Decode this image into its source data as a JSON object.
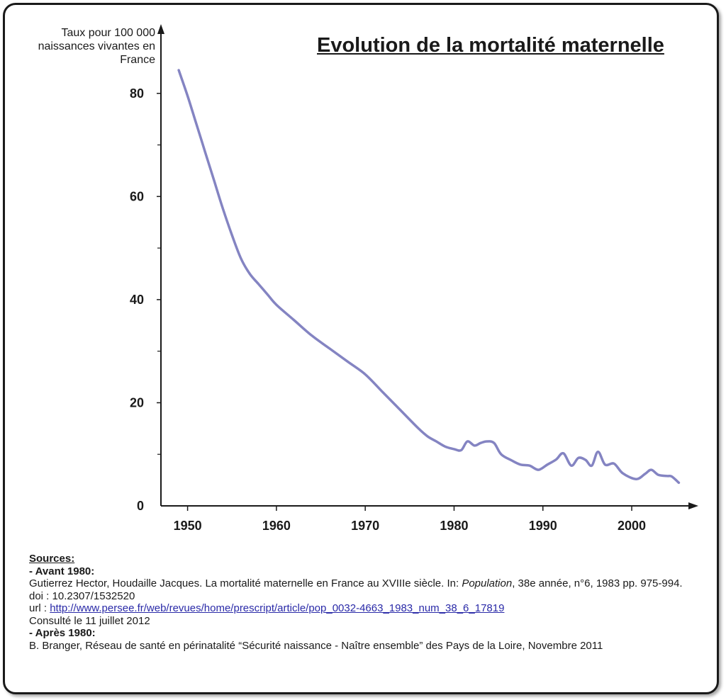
{
  "chart_data": {
    "type": "line",
    "title": "Evolution de la mortalité maternelle",
    "ylabel": "Taux pour 100 000 naissances vivantes en France",
    "xlabel": "",
    "xlim": [
      1947,
      2007.5
    ],
    "ylim": [
      0,
      90
    ],
    "x_ticks": [
      1950,
      1960,
      1970,
      1980,
      1990,
      2000
    ],
    "y_ticks": [
      0,
      20,
      40,
      60,
      80
    ],
    "y_minor_ticks": [
      10,
      30,
      50,
      70
    ],
    "line_color": "#8484c2",
    "grid": false,
    "series": [
      {
        "x": [
          1949,
          1950,
          1951,
          1952,
          1953,
          1954,
          1955,
          1956,
          1957,
          1958,
          1959,
          1960,
          1962,
          1964,
          1966,
          1968,
          1970,
          1972,
          1974,
          1976,
          1977,
          1978,
          1979,
          1980,
          1980.8,
          1981.5,
          1982.3,
          1983,
          1983.7,
          1984.5,
          1985.3,
          1986.5,
          1987.5,
          1988.5,
          1989.5,
          1990.5,
          1991.5,
          1992.3,
          1993.2,
          1994,
          1994.8,
          1995.5,
          1996.2,
          1997,
          1998,
          1999,
          2000.5,
          2001.5,
          2002.2,
          2003,
          2004,
          2004.5,
          2005.3
        ],
        "y": [
          84.5,
          79.5,
          74,
          68.5,
          63,
          57.5,
          52.5,
          48,
          45,
          43,
          41,
          39,
          36,
          33,
          30.5,
          28,
          25.5,
          22,
          18.5,
          15,
          13.5,
          12.5,
          11.5,
          11,
          10.8,
          12.5,
          11.7,
          12.2,
          12.5,
          12.2,
          10,
          8.8,
          8,
          7.8,
          7,
          8,
          9,
          10.2,
          7.8,
          9.3,
          8.9,
          7.8,
          10.5,
          8,
          8.2,
          6.3,
          5.2,
          6.2,
          7,
          6,
          5.8,
          5.7,
          4.5
        ]
      }
    ]
  },
  "sources": {
    "heading": "Sources:",
    "before_1980_label": "- Avant 1980:",
    "before_ref_part1": "Gutierrez Hector, Houdaille Jacques. La mortalité maternelle en France au XVIIIe siècle. In: ",
    "before_ref_journal": "Population",
    "before_ref_part2": ", 38e année, n°6, 1983 pp. 975-994.",
    "doi": "doi : 10.2307/1532520",
    "url_prefix": "url : ",
    "url": "http://www.persee.fr/web/revues/home/prescript/article/pop_0032-4663_1983_num_38_6_17819",
    "consulted": "Consulté le 11 juillet 2012",
    "after_1980_label": "- Après 1980:",
    "after_ref": "B. Branger, Réseau de santé en périnatalité “Sécurité naissance - Naître ensemble” des Pays de la Loire, Novembre 2011"
  }
}
